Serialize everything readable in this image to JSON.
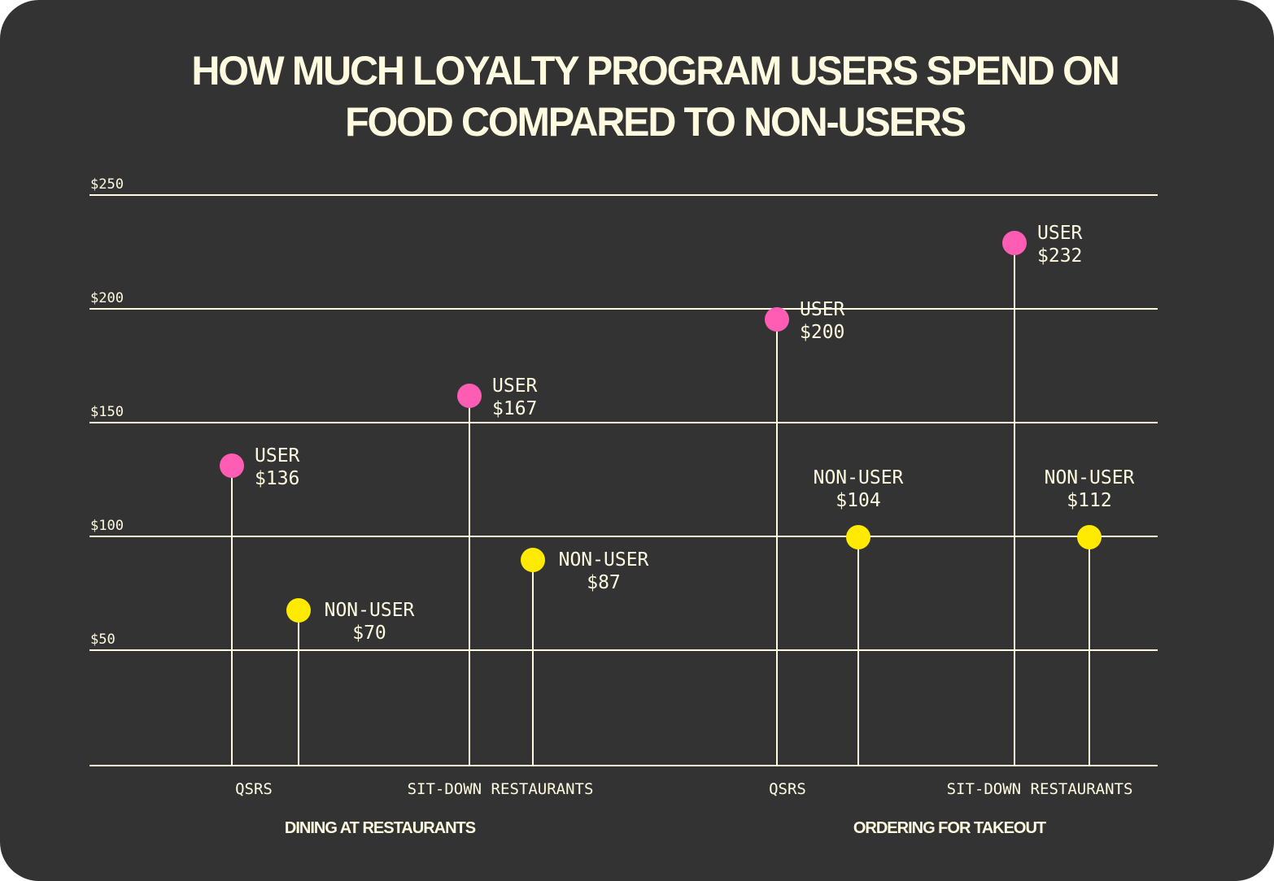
{
  "chart_data": {
    "type": "scatter",
    "subtype": "lollipop",
    "title": "HOW MUCH LOYALTY PROGRAM USERS SPEND ON FOOD COMPARED TO NON-USERS",
    "title_lines": [
      "HOW MUCH LOYALTY PROGRAM USERS SPEND ON",
      "FOOD COMPARED TO NON-USERS"
    ],
    "xlabel": "",
    "ylabel": "",
    "ylim": [
      0,
      250
    ],
    "yticks": [
      50,
      100,
      150,
      200,
      250
    ],
    "ytick_labels": [
      "$50",
      "$100",
      "$150",
      "$200",
      "$250"
    ],
    "grid": true,
    "groups": [
      {
        "name": "DINING AT RESTAURANTS",
        "categories": [
          {
            "name": "QSRS",
            "points": [
              {
                "series": "USER",
                "value": 136,
                "label": "$136"
              },
              {
                "series": "NON-USER",
                "value": 70,
                "label": "$70"
              }
            ]
          },
          {
            "name": "SIT-DOWN RESTAURANTS",
            "points": [
              {
                "series": "USER",
                "value": 167,
                "label": "$167"
              },
              {
                "series": "NON-USER",
                "value": 87,
                "label": "$87"
              }
            ]
          }
        ]
      },
      {
        "name": "ORDERING FOR TAKEOUT",
        "categories": [
          {
            "name": "QSRS",
            "points": [
              {
                "series": "USER",
                "value": 200,
                "label": "$200"
              },
              {
                "series": "NON-USER",
                "value": 104,
                "label": "$104"
              }
            ]
          },
          {
            "name": "SIT-DOWN RESTAURANTS",
            "points": [
              {
                "series": "USER",
                "value": 232,
                "label": "$232"
              },
              {
                "series": "NON-USER",
                "value": 112,
                "label": "$112"
              }
            ]
          }
        ]
      }
    ],
    "series": [
      {
        "name": "USER",
        "color": "#ff5cb4"
      },
      {
        "name": "NON-USER",
        "color": "#ffea00"
      }
    ]
  },
  "colors": {
    "background": "#333333",
    "text": "#fffbe0",
    "grid": "#fffbe0"
  }
}
